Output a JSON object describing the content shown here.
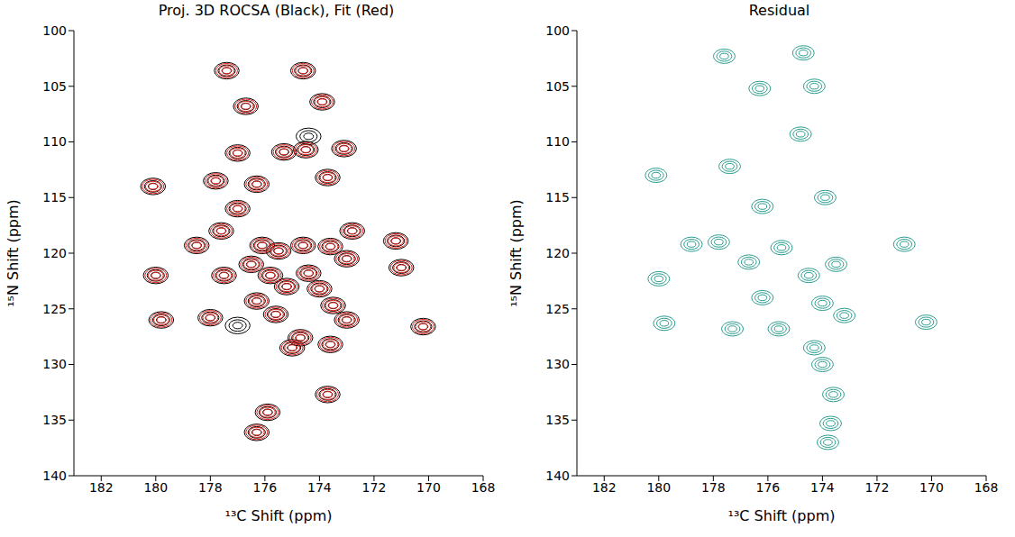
{
  "chart_data": [
    {
      "type": "scatter",
      "title": "Proj. 3D ROCSA (Black), Fit (Red)",
      "x_label": "¹³C Shift (ppm)",
      "y_label": "¹⁵N Shift (ppm)",
      "xlim": [
        183,
        168
      ],
      "xticks": [
        182,
        180,
        178,
        176,
        174,
        172,
        170,
        168
      ],
      "ylim": [
        140,
        100
      ],
      "yticks": [
        100,
        105,
        110,
        115,
        120,
        125,
        130,
        135,
        140
      ],
      "series": [
        {
          "color": "#000000",
          "points": [
            [
              177.4,
              103.6
            ],
            [
              174.6,
              103.6
            ],
            [
              176.7,
              106.8
            ],
            [
              173.9,
              106.4
            ],
            [
              174.4,
              109.5
            ],
            [
              173.1,
              110.6
            ],
            [
              175.3,
              110.9
            ],
            [
              174.5,
              110.7
            ],
            [
              177.0,
              111.0
            ],
            [
              180.1,
              114.0
            ],
            [
              177.8,
              113.5
            ],
            [
              176.3,
              113.8
            ],
            [
              173.7,
              113.2
            ],
            [
              177.0,
              116.0
            ],
            [
              178.5,
              119.3
            ],
            [
              177.6,
              118.0
            ],
            [
              176.1,
              119.3
            ],
            [
              175.5,
              119.8
            ],
            [
              174.6,
              119.3
            ],
            [
              173.6,
              119.4
            ],
            [
              172.8,
              118.0
            ],
            [
              171.2,
              118.9
            ],
            [
              180.0,
              122.0
            ],
            [
              177.5,
              122.0
            ],
            [
              176.5,
              121.0
            ],
            [
              175.8,
              122.0
            ],
            [
              174.4,
              121.8
            ],
            [
              174.0,
              123.2
            ],
            [
              175.2,
              123.0
            ],
            [
              173.0,
              120.5
            ],
            [
              171.0,
              121.3
            ],
            [
              179.8,
              126.0
            ],
            [
              178.0,
              125.8
            ],
            [
              177.0,
              126.5
            ],
            [
              176.3,
              124.3
            ],
            [
              175.6,
              125.5
            ],
            [
              173.5,
              124.7
            ],
            [
              173.0,
              126.0
            ],
            [
              170.2,
              126.6
            ],
            [
              174.7,
              127.6
            ],
            [
              175.0,
              128.5
            ],
            [
              173.6,
              128.2
            ],
            [
              173.7,
              132.7
            ],
            [
              175.9,
              134.3
            ],
            [
              176.3,
              136.1
            ]
          ]
        },
        {
          "color": "#e0201b",
          "points": [
            [
              177.4,
              103.6
            ],
            [
              174.6,
              103.6
            ],
            [
              176.7,
              106.8
            ],
            [
              173.9,
              106.4
            ],
            [
              173.1,
              110.6
            ],
            [
              175.3,
              110.9
            ],
            [
              174.5,
              110.7
            ],
            [
              177.0,
              111.0
            ],
            [
              180.1,
              114.0
            ],
            [
              177.8,
              113.5
            ],
            [
              176.3,
              113.8
            ],
            [
              173.7,
              113.2
            ],
            [
              177.0,
              116.0
            ],
            [
              178.5,
              119.3
            ],
            [
              177.6,
              118.0
            ],
            [
              176.1,
              119.3
            ],
            [
              175.5,
              119.8
            ],
            [
              174.6,
              119.3
            ],
            [
              173.6,
              119.4
            ],
            [
              172.8,
              118.0
            ],
            [
              171.2,
              118.9
            ],
            [
              180.0,
              122.0
            ],
            [
              177.5,
              122.0
            ],
            [
              176.5,
              121.0
            ],
            [
              175.8,
              122.0
            ],
            [
              174.4,
              121.8
            ],
            [
              174.0,
              123.2
            ],
            [
              175.2,
              123.0
            ],
            [
              173.0,
              120.5
            ],
            [
              171.0,
              121.3
            ],
            [
              179.8,
              126.0
            ],
            [
              178.0,
              125.8
            ],
            [
              176.3,
              124.3
            ],
            [
              175.6,
              125.5
            ],
            [
              173.5,
              124.7
            ],
            [
              173.0,
              126.0
            ],
            [
              170.2,
              126.6
            ],
            [
              174.7,
              127.6
            ],
            [
              175.0,
              128.5
            ],
            [
              173.6,
              128.2
            ],
            [
              173.7,
              132.7
            ],
            [
              175.9,
              134.3
            ],
            [
              176.3,
              136.1
            ]
          ]
        }
      ]
    },
    {
      "type": "scatter",
      "title": "Residual",
      "x_label": "¹³C Shift (ppm)",
      "y_label": "¹⁵N Shift (ppm)",
      "xlim": [
        183,
        168
      ],
      "xticks": [
        182,
        180,
        178,
        176,
        174,
        172,
        170,
        168
      ],
      "ylim": [
        140,
        100
      ],
      "yticks": [
        100,
        105,
        110,
        115,
        120,
        125,
        130,
        135,
        140
      ],
      "series": [
        {
          "color": "#2a9d8f",
          "points": [
            [
              177.6,
              102.3
            ],
            [
              174.7,
              102.0
            ],
            [
              176.3,
              105.2
            ],
            [
              174.3,
              105.0
            ],
            [
              174.8,
              109.3
            ],
            [
              177.4,
              112.2
            ],
            [
              173.9,
              115.0
            ],
            [
              180.1,
              113.0
            ],
            [
              176.2,
              115.8
            ],
            [
              178.8,
              119.2
            ],
            [
              175.5,
              119.5
            ],
            [
              174.5,
              122.0
            ],
            [
              173.5,
              121.0
            ],
            [
              171.0,
              119.2
            ],
            [
              180.0,
              122.3
            ],
            [
              179.8,
              126.3
            ],
            [
              177.3,
              126.8
            ],
            [
              174.0,
              124.5
            ],
            [
              173.2,
              125.6
            ],
            [
              170.2,
              126.2
            ],
            [
              175.6,
              126.8
            ],
            [
              174.3,
              128.5
            ],
            [
              174.0,
              130.0
            ],
            [
              173.6,
              132.7
            ],
            [
              173.7,
              135.3
            ],
            [
              173.8,
              137.0
            ],
            [
              176.2,
              124.0
            ],
            [
              177.8,
              119.0
            ],
            [
              176.7,
              120.8
            ]
          ]
        }
      ]
    }
  ]
}
